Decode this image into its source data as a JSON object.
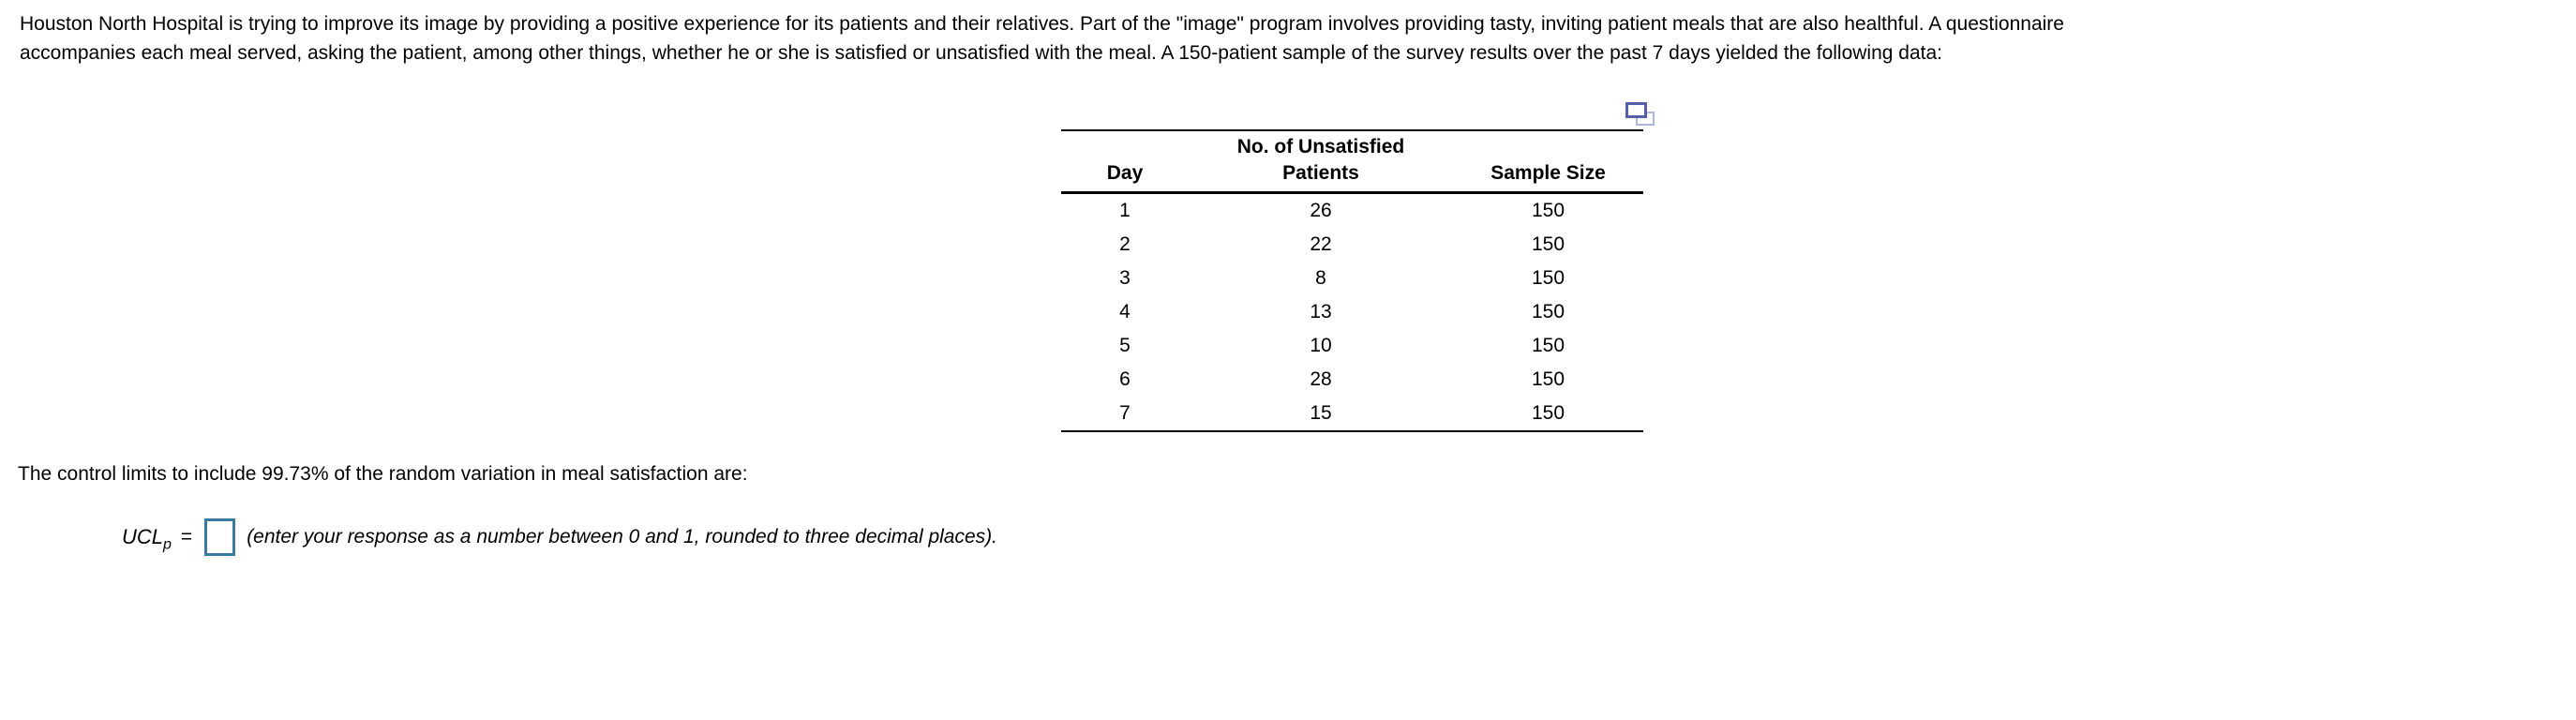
{
  "colors": {
    "text": "#000000",
    "table_rule": "#000000",
    "input_border": "#3a7a9c",
    "copy_icon_front": "#5560a8",
    "copy_icon_back": "#afb6da"
  },
  "problem": {
    "lines": [
      "Houston North Hospital is trying to improve its image by providing a positive experience for its patients and their relatives. Part of the \"image\" program involves providing tasty, inviting patient meals that are also healthful. A questionnaire",
      "accompanies each meal served, asking the patient, among other things, whether he or she is satisfied or unsatisfied with the meal. A 150-patient sample of the survey results over the past 7 days yielded the following data:"
    ]
  },
  "table": {
    "copy_icon": "copy-to-clipboard",
    "header": {
      "day": "Day",
      "unsatisfied_line1": "No. of Unsatisfied",
      "unsatisfied_line2": "Patients",
      "sample_size": "Sample Size"
    },
    "rows": [
      [
        "1",
        "26",
        "150"
      ],
      [
        "2",
        "22",
        "150"
      ],
      [
        "3",
        "8",
        "150"
      ],
      [
        "4",
        "13",
        "150"
      ],
      [
        "5",
        "10",
        "150"
      ],
      [
        "6",
        "28",
        "150"
      ],
      [
        "7",
        "15",
        "150"
      ]
    ]
  },
  "question": {
    "prompt": "The control limits to include 99.73% of the random variation in meal satisfaction are:",
    "formula_label": "UCL",
    "formula_subscript": "p",
    "equals_sign": "=",
    "answer_value": "",
    "hint": "(enter your response as a number between 0 and 1, rounded to three decimal places)."
  }
}
